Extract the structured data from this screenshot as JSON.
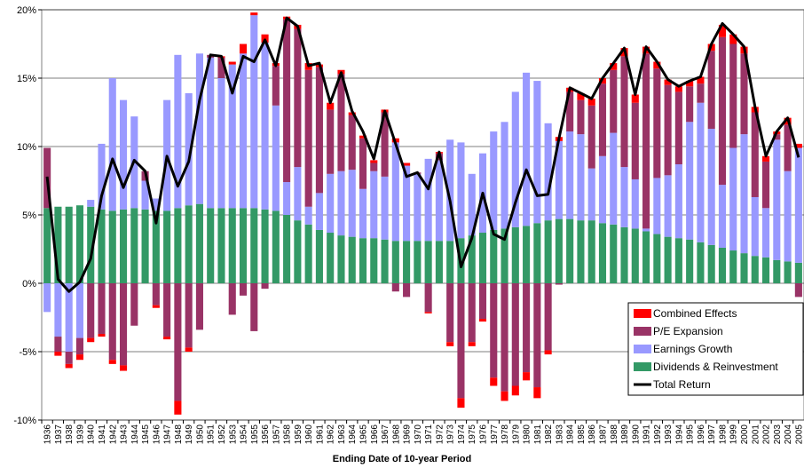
{
  "chart_data": {
    "type": "bar",
    "stacked": true,
    "x_label": "Ending Date of 10-year Period",
    "categories": [
      "1936",
      "1937",
      "1938",
      "1939",
      "1940",
      "1941",
      "1942",
      "1943",
      "1944",
      "1945",
      "1946",
      "1947",
      "1948",
      "1949",
      "1950",
      "1951",
      "1952",
      "1953",
      "1954",
      "1955",
      "1956",
      "1957",
      "1958",
      "1959",
      "1960",
      "1961",
      "1962",
      "1963",
      "1964",
      "1965",
      "1966",
      "1967",
      "1968",
      "1969",
      "1970",
      "1971",
      "1972",
      "1973",
      "1974",
      "1975",
      "1976",
      "1977",
      "1978",
      "1979",
      "1980",
      "1981",
      "1982",
      "1983",
      "1984",
      "1985",
      "1986",
      "1987",
      "1988",
      "1989",
      "1990",
      "1991",
      "1992",
      "1993",
      "1994",
      "1995",
      "1996",
      "1997",
      "1998",
      "1999",
      "2000",
      "2001",
      "2002",
      "2003",
      "2004",
      "2005"
    ],
    "series": [
      {
        "name": "Combined Effects",
        "type": "bar",
        "color": "#ff0000",
        "values": [
          0,
          -0.3,
          -0.3,
          -0.4,
          -0.3,
          -0.2,
          -0.3,
          -0.4,
          0,
          0,
          -0.2,
          -0.2,
          -1.0,
          -0.3,
          0,
          0,
          0.1,
          0.2,
          0.7,
          0.2,
          0.6,
          0.2,
          0.2,
          0.3,
          0.5,
          0.2,
          0.5,
          0.3,
          0.2,
          0.2,
          0.2,
          0.2,
          0.3,
          0.2,
          0,
          -0.1,
          0.1,
          -0.3,
          -0.7,
          -0.3,
          -0.2,
          -0.6,
          -0.7,
          -0.7,
          -0.6,
          -0.8,
          -0.3,
          0.3,
          0.3,
          0.5,
          0.5,
          0.4,
          0.5,
          0.6,
          0.6,
          0.5,
          0.5,
          0.4,
          0.4,
          0.4,
          0.5,
          0.5,
          0.9,
          0.7,
          0.5,
          0.4,
          0.4,
          0.2,
          0.5,
          0.3
        ]
      },
      {
        "name": "P/E Expansion",
        "type": "bar",
        "color": "#993366",
        "values": [
          4.4,
          -1.1,
          -0.9,
          -1.2,
          -4.0,
          -3.7,
          -5.6,
          -6.0,
          -3.1,
          0.7,
          -1.6,
          -3.9,
          -8.6,
          -4.7,
          -3.4,
          0.2,
          1.5,
          -2.3,
          -0.9,
          -3.5,
          -0.4,
          2.9,
          11.9,
          10.1,
          10.0,
          9.2,
          4.7,
          7.1,
          4.0,
          3.7,
          0.6,
          4.7,
          -0.6,
          -1.0,
          0.1,
          -2.1,
          0.5,
          -4.3,
          -8.4,
          -4.3,
          -2.6,
          -6.9,
          -7.9,
          -7.5,
          -6.5,
          -7.6,
          -4.9,
          -0.1,
          2.9,
          2.5,
          4.6,
          5.3,
          4.6,
          8.1,
          5.6,
          12.8,
          8.0,
          6.6,
          5.3,
          2.6,
          1.4,
          5.7,
          10.8,
          7.6,
          5.9,
          6.2,
          3.4,
          0.4,
          3.4,
          -1.0
        ]
      },
      {
        "name": "Earnings Growth",
        "type": "bar",
        "color": "#9999ff",
        "values": [
          -2.1,
          -3.9,
          -5.0,
          -4.0,
          0.5,
          4.8,
          9.7,
          8.0,
          6.7,
          2.1,
          0.9,
          8.1,
          11.2,
          8.2,
          11.0,
          11.0,
          9.5,
          10.5,
          11.3,
          14.1,
          12.2,
          7.7,
          2.4,
          3.9,
          1.3,
          2.7,
          4.3,
          4.7,
          4.9,
          3.6,
          4.9,
          4.6,
          7.2,
          5.5,
          4.9,
          6.0,
          5.9,
          7.4,
          7.0,
          4.5,
          5.8,
          7.2,
          7.8,
          9.9,
          11.2,
          10.4,
          7.1,
          5.7,
          6.4,
          6.3,
          3.8,
          4.9,
          6.7,
          4.4,
          3.6,
          0.2,
          4.1,
          4.5,
          5.4,
          8.6,
          10.2,
          8.5,
          4.6,
          7.5,
          8.7,
          4.3,
          3.6,
          8.8,
          6.6,
          8.4
        ]
      },
      {
        "name": "Dividends & Reinvestment",
        "type": "bar",
        "color": "#339966",
        "values": [
          5.5,
          5.6,
          5.6,
          5.7,
          5.6,
          5.4,
          5.3,
          5.4,
          5.5,
          5.4,
          5.3,
          5.3,
          5.5,
          5.7,
          5.8,
          5.5,
          5.5,
          5.5,
          5.5,
          5.5,
          5.4,
          5.3,
          5.0,
          4.6,
          4.3,
          3.9,
          3.7,
          3.5,
          3.4,
          3.3,
          3.3,
          3.2,
          3.1,
          3.1,
          3.1,
          3.1,
          3.1,
          3.1,
          3.3,
          3.5,
          3.7,
          3.9,
          4.0,
          4.1,
          4.2,
          4.4,
          4.6,
          4.7,
          4.7,
          4.6,
          4.6,
          4.4,
          4.3,
          4.1,
          4.0,
          3.8,
          3.6,
          3.4,
          3.3,
          3.2,
          3.0,
          2.8,
          2.6,
          2.4,
          2.2,
          2.0,
          1.9,
          1.7,
          1.6,
          1.5
        ]
      },
      {
        "name": "Total Return",
        "type": "line",
        "color": "#000000",
        "values": [
          7.8,
          0.3,
          -0.6,
          0.1,
          1.8,
          6.4,
          9.1,
          7.0,
          9.0,
          8.2,
          4.4,
          9.3,
          7.1,
          8.9,
          13.4,
          16.7,
          16.6,
          13.9,
          16.6,
          16.2,
          17.8,
          15.9,
          19.4,
          18.8,
          15.9,
          16.1,
          13.2,
          15.4,
          12.6,
          11.1,
          9.1,
          12.6,
          10.2,
          7.8,
          8.1,
          6.9,
          9.6,
          6.0,
          1.2,
          3.3,
          6.6,
          3.6,
          3.2,
          5.9,
          8.3,
          6.4,
          6.5,
          10.6,
          14.3,
          13.9,
          13.5,
          15.0,
          16.1,
          17.2,
          13.8,
          17.3,
          16.2,
          14.9,
          14.4,
          14.8,
          15.1,
          17.5,
          19.0,
          18.2,
          17.3,
          12.9,
          9.3,
          11.1,
          12.1,
          9.2
        ]
      }
    ],
    "ylim": [
      -10,
      20
    ],
    "yticks": [
      {
        "value": -10,
        "label": "-10%"
      },
      {
        "value": -5,
        "label": "-5%"
      },
      {
        "value": 0,
        "label": "0%"
      },
      {
        "value": 5,
        "label": "5%"
      },
      {
        "value": 10,
        "label": "10%"
      },
      {
        "value": 15,
        "label": "15%"
      },
      {
        "value": 20,
        "label": "20%"
      }
    ],
    "grid": true,
    "legend": "lower right"
  }
}
